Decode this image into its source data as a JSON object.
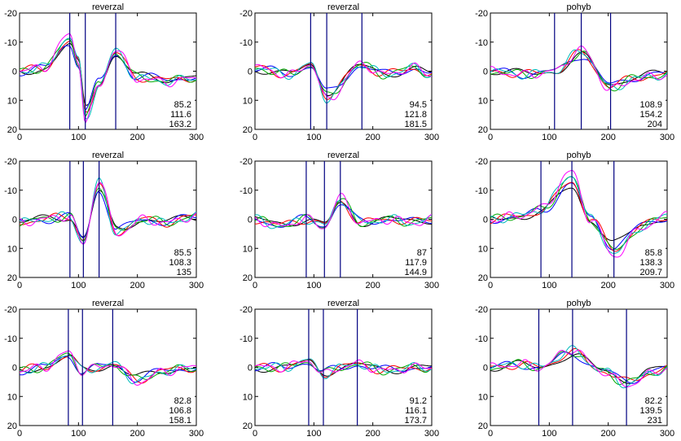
{
  "chart_data": [
    {
      "type": "line",
      "title": "reverzal",
      "x_ticks": [
        "0",
        "100",
        "200",
        "300"
      ],
      "y_ticks": [
        "-20",
        "-10",
        "0",
        "10",
        "20"
      ],
      "xlim": [
        0,
        300
      ],
      "ylim": [
        -20,
        20
      ],
      "y_inverted": true,
      "markers": [
        85.2,
        111.6,
        163.2
      ],
      "annotations": [
        "85.2",
        "111.6",
        "163.2"
      ],
      "peaks": [
        [
          0,
          0
        ],
        [
          40,
          -1
        ],
        [
          85,
          -10
        ],
        [
          100,
          -3
        ],
        [
          112,
          14
        ],
        [
          135,
          4
        ],
        [
          163,
          -6
        ],
        [
          200,
          2
        ],
        [
          250,
          3
        ],
        [
          300,
          2
        ]
      ],
      "series_colors": [
        "#000000",
        "#0000ff",
        "#ff0000",
        "#00aa00",
        "#00bbbb",
        "#ff00ff"
      ]
    },
    {
      "type": "line",
      "title": "reverzal",
      "x_ticks": [
        "0",
        "100",
        "200",
        "300"
      ],
      "y_ticks": [
        "-20",
        "-10",
        "0",
        "10",
        "20"
      ],
      "xlim": [
        0,
        300
      ],
      "ylim": [
        -20,
        20
      ],
      "y_inverted": true,
      "markers": [
        94.5,
        121.8,
        181.5
      ],
      "annotations": [
        "94.5",
        "121.8",
        "181.5"
      ],
      "peaks": [
        [
          0,
          -1
        ],
        [
          60,
          1
        ],
        [
          95,
          -2
        ],
        [
          122,
          8
        ],
        [
          181,
          -2
        ],
        [
          220,
          1
        ],
        [
          270,
          -1
        ],
        [
          300,
          1
        ]
      ],
      "series_colors": [
        "#000000",
        "#0000ff",
        "#ff0000",
        "#00aa00",
        "#00bbbb",
        "#ff00ff"
      ]
    },
    {
      "type": "line",
      "title": "pohyb",
      "x_ticks": [
        "0",
        "100",
        "200",
        "300"
      ],
      "y_ticks": [
        "-20",
        "-10",
        "0",
        "10",
        "20"
      ],
      "xlim": [
        0,
        300
      ],
      "ylim": [
        -20,
        20
      ],
      "y_inverted": true,
      "markers": [
        108.9,
        154.2,
        204
      ],
      "annotations": [
        "108.9",
        "154.2",
        "204"
      ],
      "peaks": [
        [
          0,
          0
        ],
        [
          60,
          1
        ],
        [
          109,
          0
        ],
        [
          154,
          -6
        ],
        [
          204,
          5
        ],
        [
          250,
          2
        ],
        [
          300,
          1
        ]
      ],
      "series_colors": [
        "#000000",
        "#0000ff",
        "#ff0000",
        "#00aa00",
        "#00bbbb",
        "#ff00ff"
      ]
    },
    {
      "type": "line",
      "title": "reverzal",
      "x_ticks": [
        "0",
        "100",
        "200",
        "300"
      ],
      "y_ticks": [
        "-20",
        "-10",
        "0",
        "10",
        "20"
      ],
      "xlim": [
        0,
        300
      ],
      "ylim": [
        -20,
        20
      ],
      "y_inverted": true,
      "markers": [
        85.5,
        108.3,
        135
      ],
      "annotations": [
        "85.5",
        "108.3",
        "135"
      ],
      "peaks": [
        [
          0,
          1
        ],
        [
          40,
          0
        ],
        [
          85,
          -1
        ],
        [
          108,
          7
        ],
        [
          135,
          -11
        ],
        [
          165,
          4
        ],
        [
          210,
          0
        ],
        [
          250,
          1
        ],
        [
          300,
          -1
        ]
      ],
      "series_colors": [
        "#000000",
        "#0000ff",
        "#ff0000",
        "#00aa00",
        "#00bbbb",
        "#ff00ff"
      ]
    },
    {
      "type": "line",
      "title": "reverzal",
      "x_ticks": [
        "0",
        "100",
        "200",
        "300"
      ],
      "y_ticks": [
        "-20",
        "-10",
        "0",
        "10",
        "20"
      ],
      "xlim": [
        0,
        300
      ],
      "ylim": [
        -20,
        20
      ],
      "y_inverted": true,
      "markers": [
        87,
        117.9,
        144.9
      ],
      "annotations": [
        "87",
        "117.9",
        "144.9"
      ],
      "peaks": [
        [
          0,
          0
        ],
        [
          40,
          2
        ],
        [
          87,
          0
        ],
        [
          118,
          2
        ],
        [
          145,
          -6
        ],
        [
          180,
          1
        ],
        [
          230,
          0
        ],
        [
          270,
          1
        ],
        [
          300,
          0
        ]
      ],
      "series_colors": [
        "#000000",
        "#0000ff",
        "#ff0000",
        "#00aa00",
        "#00bbbb",
        "#ff00ff"
      ]
    },
    {
      "type": "line",
      "title": "pohyb",
      "x_ticks": [
        "0",
        "100",
        "200",
        "300"
      ],
      "y_ticks": [
        "-20",
        "-10",
        "0",
        "10",
        "20"
      ],
      "xlim": [
        0,
        300
      ],
      "ylim": [
        -20,
        20
      ],
      "y_inverted": true,
      "markers": [
        85.8,
        138.3,
        209.7
      ],
      "annotations": [
        "85.8",
        "138.3",
        "209.7"
      ],
      "peaks": [
        [
          0,
          0
        ],
        [
          50,
          -1
        ],
        [
          86,
          -3
        ],
        [
          138,
          -13
        ],
        [
          170,
          0
        ],
        [
          210,
          10
        ],
        [
          260,
          2
        ],
        [
          300,
          -1
        ]
      ],
      "series_colors": [
        "#000000",
        "#0000ff",
        "#ff0000",
        "#00aa00",
        "#00bbbb",
        "#ff00ff"
      ]
    },
    {
      "type": "line",
      "title": "reverzal",
      "x_ticks": [
        "0",
        "100",
        "200",
        "300"
      ],
      "y_ticks": [
        "-20",
        "-10",
        "0",
        "10",
        "20"
      ],
      "xlim": [
        0,
        300
      ],
      "ylim": [
        -20,
        20
      ],
      "y_inverted": true,
      "markers": [
        82.8,
        106.8,
        158.1
      ],
      "annotations": [
        "82.8",
        "106.8",
        "158.1"
      ],
      "peaks": [
        [
          0,
          1
        ],
        [
          40,
          0
        ],
        [
          83,
          -4
        ],
        [
          107,
          1
        ],
        [
          135,
          0
        ],
        [
          158,
          -1
        ],
        [
          200,
          4
        ],
        [
          250,
          1
        ],
        [
          300,
          0
        ]
      ],
      "series_colors": [
        "#000000",
        "#0000ff",
        "#ff0000",
        "#00aa00",
        "#00bbbb",
        "#ff00ff"
      ]
    },
    {
      "type": "line",
      "title": "reverzal",
      "x_ticks": [
        "0",
        "100",
        "200",
        "300"
      ],
      "y_ticks": [
        "-20",
        "-10",
        "0",
        "10",
        "20"
      ],
      "xlim": [
        0,
        300
      ],
      "ylim": [
        -20,
        20
      ],
      "y_inverted": true,
      "markers": [
        91.2,
        116.1,
        173.7
      ],
      "annotations": [
        "91.2",
        "116.1",
        "173.7"
      ],
      "peaks": [
        [
          0,
          0
        ],
        [
          50,
          0
        ],
        [
          91,
          -2
        ],
        [
          116,
          2
        ],
        [
          145,
          0
        ],
        [
          174,
          -1
        ],
        [
          220,
          1
        ],
        [
          270,
          0
        ],
        [
          300,
          0
        ]
      ],
      "series_colors": [
        "#000000",
        "#0000ff",
        "#ff0000",
        "#00aa00",
        "#00bbbb",
        "#ff00ff"
      ]
    },
    {
      "type": "line",
      "title": "pohyb",
      "x_ticks": [
        "0",
        "100",
        "200",
        "300"
      ],
      "y_ticks": [
        "-20",
        "-10",
        "0",
        "10",
        "20"
      ],
      "xlim": [
        0,
        300
      ],
      "ylim": [
        -20,
        20
      ],
      "y_inverted": true,
      "markers": [
        82.2,
        139.5,
        231
      ],
      "annotations": [
        "82.2",
        "139.5",
        "231"
      ],
      "peaks": [
        [
          0,
          0
        ],
        [
          50,
          -1
        ],
        [
          82,
          0
        ],
        [
          139,
          -5
        ],
        [
          190,
          1
        ],
        [
          231,
          5
        ],
        [
          270,
          2
        ],
        [
          300,
          0
        ]
      ],
      "series_colors": [
        "#000000",
        "#0000ff",
        "#ff0000",
        "#00aa00",
        "#00bbbb",
        "#ff00ff"
      ]
    }
  ]
}
